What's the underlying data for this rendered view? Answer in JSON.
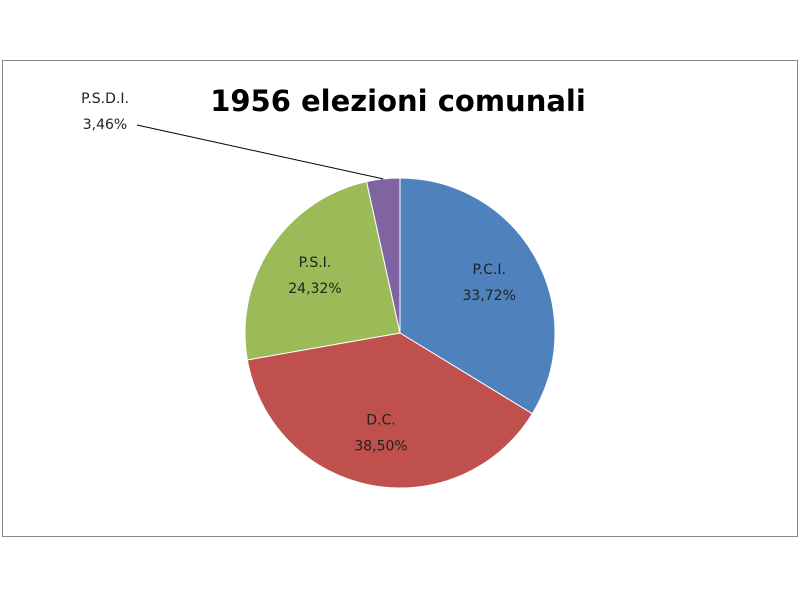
{
  "chart_data": {
    "type": "pie",
    "title": "1956 elezioni comunali",
    "categories": [
      "P.C.I.",
      "D.C.",
      "P.S.I.",
      "P.S.D.I."
    ],
    "values": [
      33.72,
      38.5,
      24.32,
      3.46
    ],
    "value_labels": [
      "33,72%",
      "38,50%",
      "24,32%",
      "3,46%"
    ],
    "colors": [
      "#4f81bd",
      "#c0504d",
      "#9bbb59",
      "#8064a2"
    ]
  }
}
